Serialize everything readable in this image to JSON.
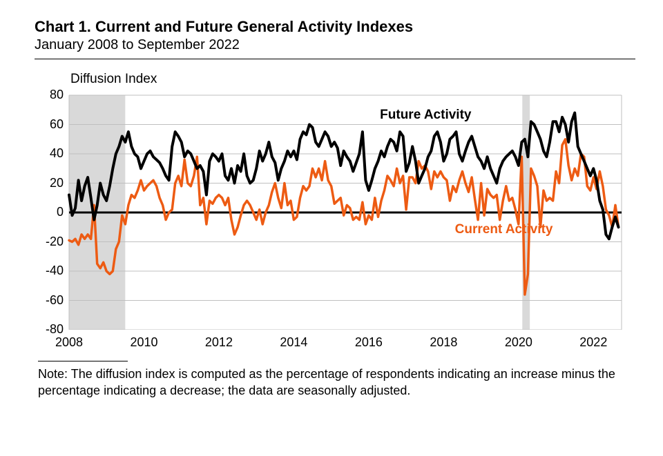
{
  "chart": {
    "type": "line",
    "title": "Chart 1. Current and Future General Activity Indexes",
    "subtitle": "January 2008 to September 2022",
    "y_axis_title": "Diffusion Index",
    "background_color": "#ffffff",
    "grid_color": "#bfbfbf",
    "title_color": "#000000",
    "label_color": "#000000",
    "title_fontsize": 22,
    "subtitle_fontsize": 20,
    "axis_title_fontsize": 19,
    "tick_fontsize": 18,
    "series_label_fontsize": 19,
    "footnote_fontsize": 18,
    "ylim": [
      -80,
      80
    ],
    "yticks": [
      80,
      60,
      40,
      20,
      0,
      -20,
      -40,
      -60,
      -80
    ],
    "x_year_start": 2008,
    "x_year_end": 2022.75,
    "xticks": [
      2008,
      2010,
      2012,
      2014,
      2016,
      2018,
      2020,
      2022
    ],
    "zero_line_color": "#000000",
    "zero_line_width": 3,
    "recession_bands": [
      {
        "start": 2008.0,
        "end": 2009.5,
        "color": "#d9d9d9"
      },
      {
        "start": 2020.1,
        "end": 2020.3,
        "color": "#d9d9d9"
      }
    ],
    "series": {
      "future": {
        "label": "Future Activity",
        "color": "#000000",
        "line_width": 4,
        "label_pos": {
          "year": 2016.3,
          "y": 66
        },
        "values": [
          12,
          -2,
          3,
          22,
          8,
          18,
          24,
          10,
          -5,
          5,
          20,
          12,
          8,
          18,
          30,
          40,
          45,
          52,
          48,
          55,
          45,
          40,
          38,
          30,
          35,
          40,
          42,
          38,
          36,
          34,
          30,
          25,
          22,
          45,
          55,
          52,
          48,
          38,
          42,
          40,
          35,
          30,
          32,
          28,
          12,
          35,
          40,
          38,
          35,
          40,
          25,
          22,
          30,
          20,
          32,
          28,
          40,
          25,
          20,
          22,
          30,
          42,
          35,
          40,
          48,
          38,
          34,
          22,
          30,
          35,
          42,
          38,
          42,
          36,
          50,
          55,
          53,
          60,
          58,
          48,
          45,
          50,
          55,
          52,
          45,
          48,
          44,
          32,
          42,
          38,
          35,
          28,
          34,
          40,
          55,
          22,
          15,
          22,
          30,
          35,
          42,
          38,
          45,
          50,
          48,
          42,
          55,
          52,
          28,
          34,
          45,
          35,
          20,
          25,
          30,
          38,
          42,
          52,
          55,
          48,
          35,
          40,
          50,
          52,
          55,
          40,
          35,
          42,
          48,
          52,
          45,
          38,
          35,
          30,
          38,
          30,
          25,
          20,
          30,
          35,
          38,
          40,
          42,
          38,
          32,
          48,
          50,
          38,
          62,
          60,
          55,
          50,
          42,
          38,
          48,
          62,
          62,
          55,
          65,
          60,
          48,
          62,
          68,
          45,
          40,
          35,
          30,
          25,
          30,
          22,
          8,
          2,
          -15,
          -18,
          -10,
          -3,
          -10
        ]
      },
      "current": {
        "label": "Current Activity",
        "color": "#ed5b13",
        "line_width": 3.5,
        "label_pos": {
          "year": 2018.3,
          "y": -12
        },
        "values": [
          -19,
          -20,
          -18,
          -22,
          -15,
          -18,
          -15,
          -18,
          5,
          -35,
          -38,
          -34,
          -40,
          -42,
          -40,
          -25,
          -20,
          -2,
          -8,
          5,
          12,
          10,
          15,
          22,
          15,
          18,
          20,
          22,
          18,
          10,
          5,
          -5,
          0,
          2,
          20,
          25,
          18,
          36,
          20,
          18,
          25,
          38,
          5,
          10,
          -8,
          8,
          6,
          10,
          12,
          10,
          5,
          10,
          -5,
          -15,
          -10,
          -2,
          5,
          8,
          5,
          0,
          -5,
          2,
          -8,
          0,
          5,
          14,
          20,
          10,
          3,
          20,
          5,
          8,
          -5,
          -3,
          10,
          18,
          15,
          18,
          30,
          24,
          30,
          22,
          35,
          22,
          18,
          6,
          8,
          10,
          -2,
          5,
          3,
          -5,
          -3,
          -5,
          7,
          -8,
          -2,
          -5,
          10,
          -3,
          8,
          15,
          25,
          22,
          18,
          30,
          20,
          25,
          2,
          24,
          24,
          20,
          35,
          30,
          32,
          28,
          16,
          28,
          24,
          28,
          24,
          22,
          8,
          18,
          14,
          22,
          28,
          20,
          14,
          24,
          9,
          -5,
          20,
          -2,
          16,
          12,
          10,
          12,
          -5,
          8,
          18,
          8,
          10,
          2,
          -8,
          38,
          -56,
          -42,
          30,
          25,
          18,
          -10,
          15,
          8,
          10,
          8,
          28,
          20,
          46,
          50,
          32,
          22,
          30,
          25,
          40,
          38,
          18,
          15,
          24,
          16,
          28,
          18,
          2,
          -2,
          -10,
          5,
          -10
        ]
      }
    },
    "footnote": "Note: The diffusion index is computed as the percentage of respondents indicating an increase minus the percentage indicating a decrease; the data are seasonally adjusted."
  }
}
